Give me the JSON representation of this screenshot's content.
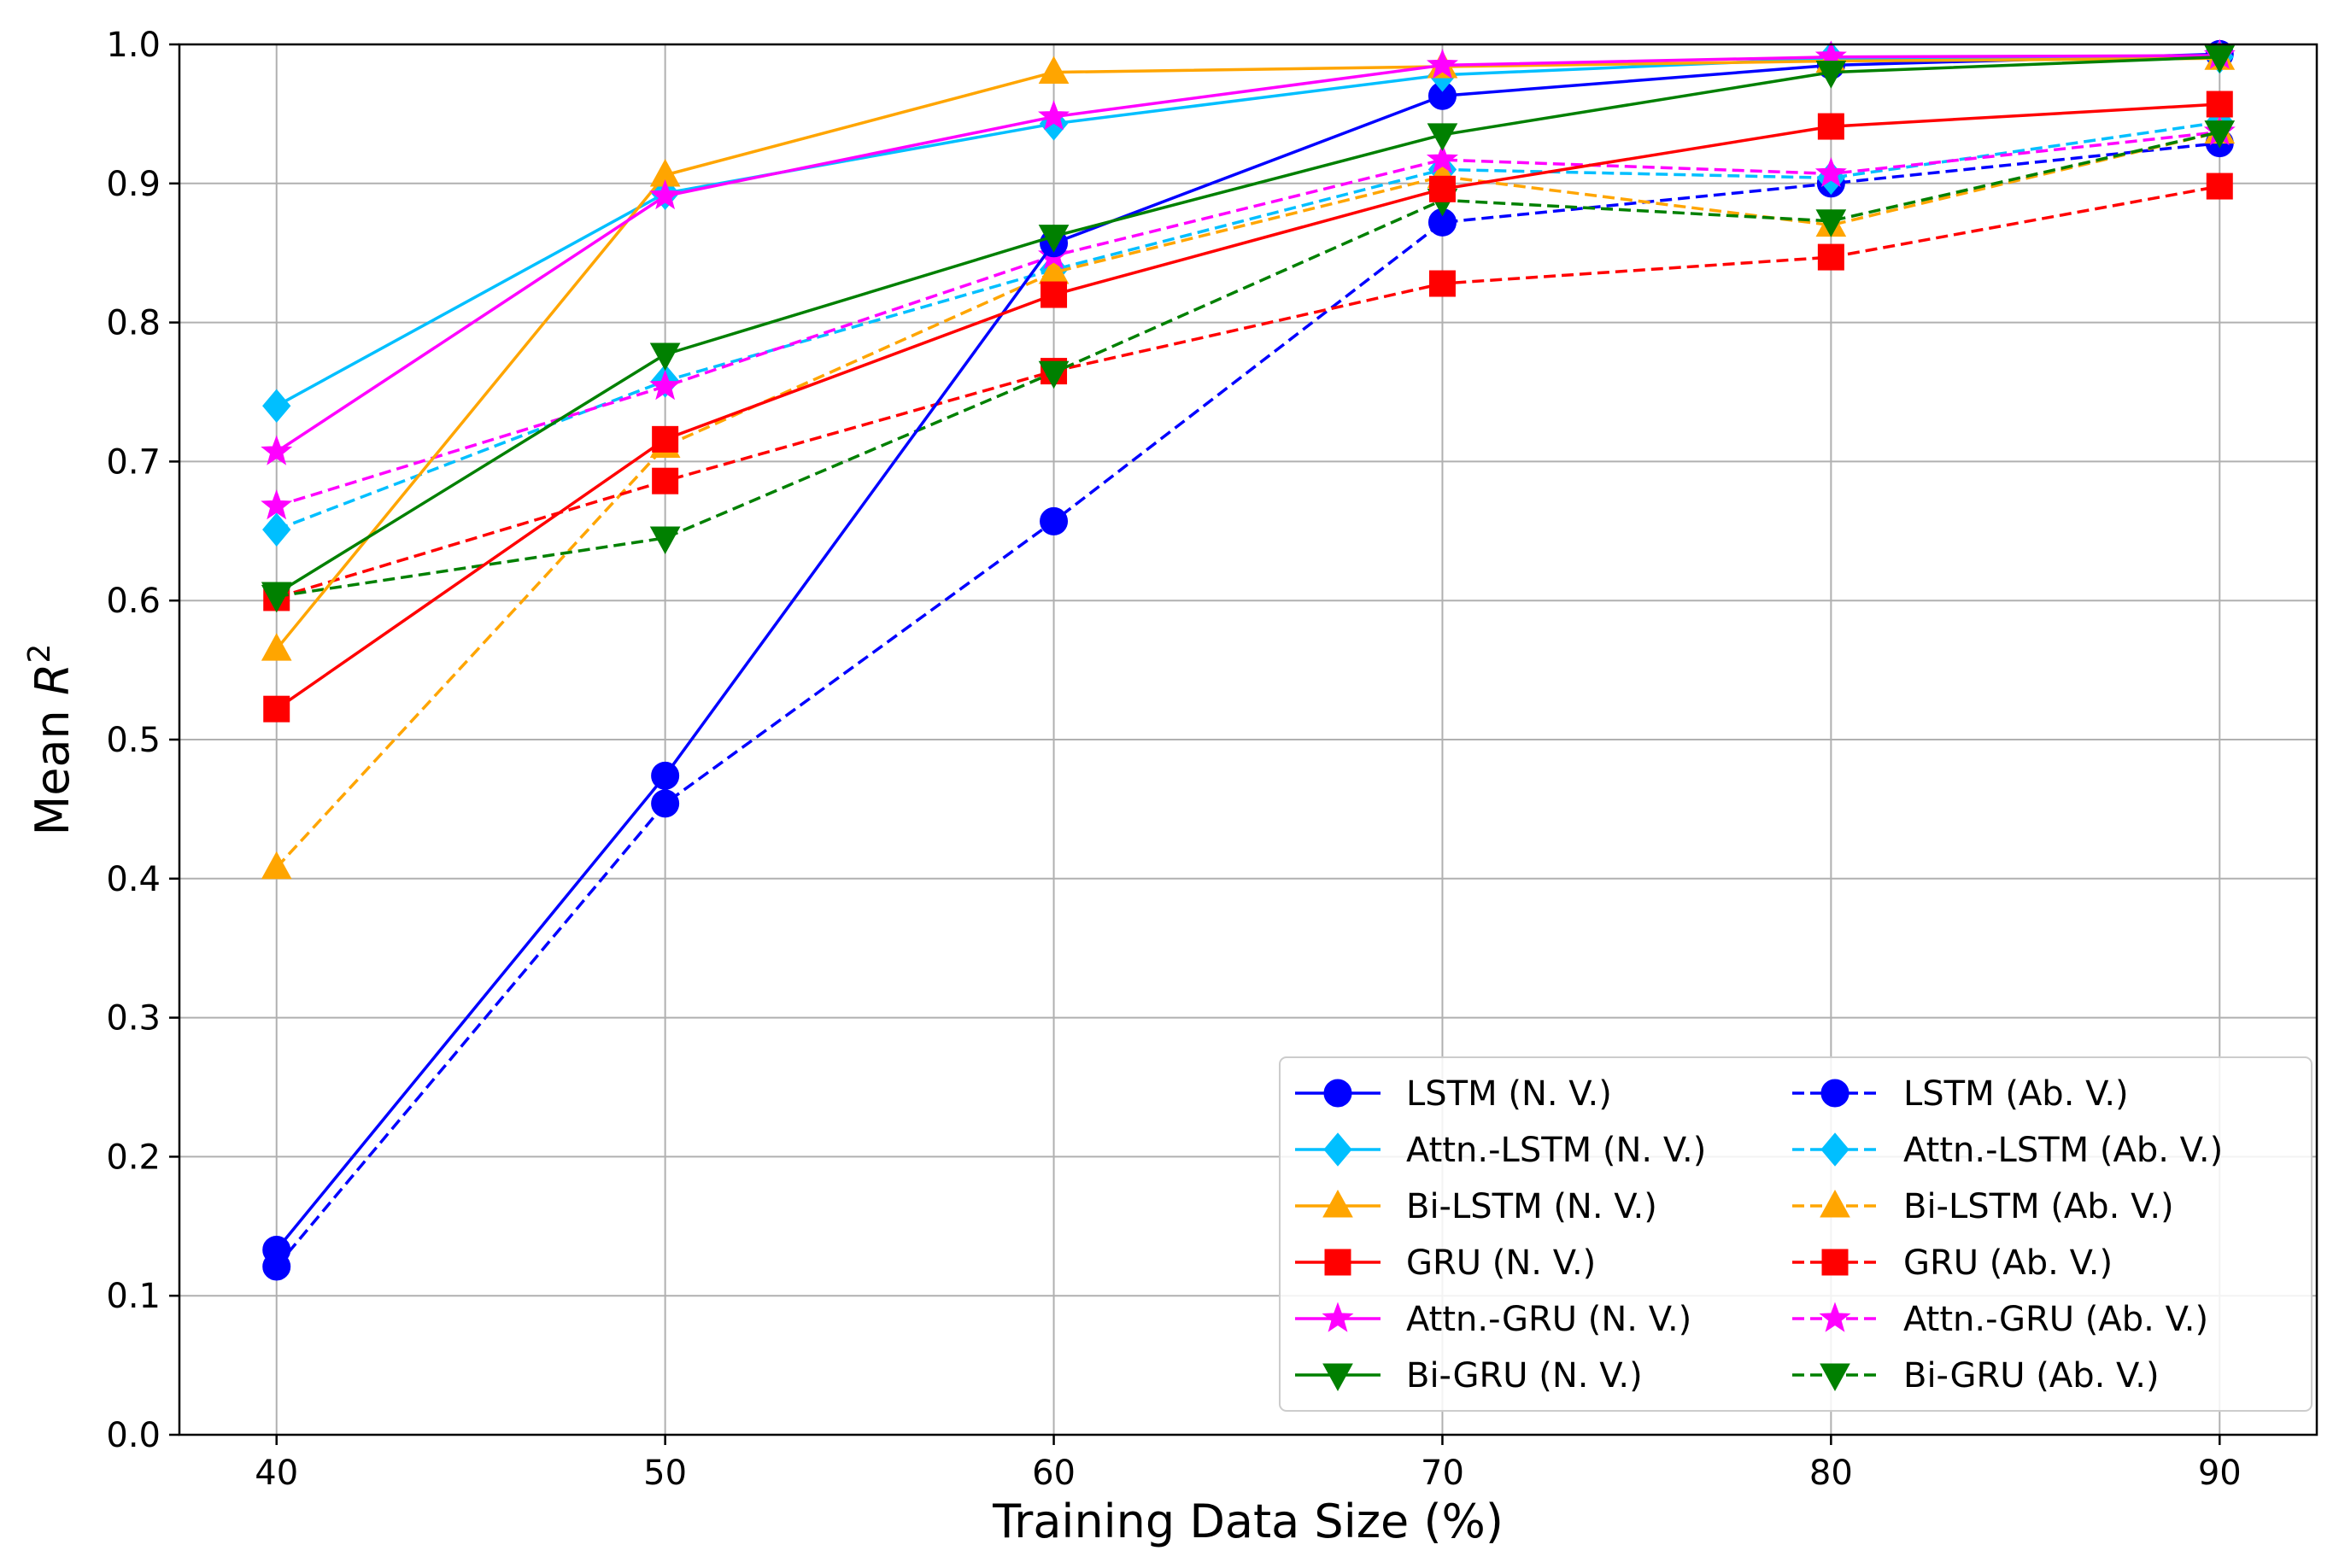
{
  "chart_data": {
    "type": "line",
    "xlabel": "Training Data Size (%)",
    "ylabel_prefix": "Mean ",
    "ylabel_var": "R",
    "ylabel_sup": "2",
    "x": [
      40,
      50,
      60,
      70,
      80,
      90
    ],
    "x_ticks": [
      "40",
      "50",
      "60",
      "70",
      "80",
      "90"
    ],
    "xlim": [
      37.5,
      92.5
    ],
    "ylim": [
      0.0,
      1.0
    ],
    "y_ticks": [
      "0.0",
      "0.1",
      "0.2",
      "0.3",
      "0.4",
      "0.5",
      "0.6",
      "0.7",
      "0.8",
      "0.9",
      "1.0"
    ],
    "y_tick_values": [
      0.0,
      0.1,
      0.2,
      0.3,
      0.4,
      0.5,
      0.6,
      0.7,
      0.8,
      0.9,
      1.0
    ],
    "grid": true,
    "legend_position": "bottom-right",
    "series": [
      {
        "name": "LSTM (N. V.)",
        "color": "#0000ff",
        "dash": "solid",
        "marker": "circle",
        "values": [
          0.133,
          0.474,
          0.857,
          0.963,
          0.985,
          0.993
        ]
      },
      {
        "name": "Attn.-LSTM (N. V.)",
        "color": "#00bfff",
        "dash": "solid",
        "marker": "diamond",
        "values": [
          0.74,
          0.893,
          0.943,
          0.978,
          0.99,
          0.991
        ]
      },
      {
        "name": "Bi-LSTM (N. V.)",
        "color": "#ffa500",
        "dash": "solid",
        "marker": "triangle-up",
        "values": [
          0.565,
          0.906,
          0.98,
          0.984,
          0.988,
          0.99
        ]
      },
      {
        "name": "GRU (N. V.)",
        "color": "#ff0000",
        "dash": "solid",
        "marker": "square",
        "values": [
          0.522,
          0.716,
          0.82,
          0.896,
          0.941,
          0.957
        ]
      },
      {
        "name": "Attn.-GRU (N. V.)",
        "color": "#ff00ff",
        "dash": "solid",
        "marker": "star",
        "values": [
          0.707,
          0.891,
          0.948,
          0.985,
          0.991,
          0.992
        ]
      },
      {
        "name": "Bi-GRU (N. V.)",
        "color": "#008000",
        "dash": "solid",
        "marker": "triangle-down",
        "values": [
          0.605,
          0.777,
          0.862,
          0.935,
          0.98,
          0.991
        ]
      },
      {
        "name": "LSTM (Ab. V.)",
        "color": "#0000ff",
        "dash": "dashed",
        "marker": "circle",
        "values": [
          0.121,
          0.454,
          0.657,
          0.872,
          0.9,
          0.929
        ]
      },
      {
        "name": "Attn.-LSTM (Ab. V.)",
        "color": "#00bfff",
        "dash": "dashed",
        "marker": "diamond",
        "values": [
          0.651,
          0.758,
          0.838,
          0.91,
          0.904,
          0.944
        ]
      },
      {
        "name": "Bi-LSTM (Ab. V.)",
        "color": "#ffa500",
        "dash": "dashed",
        "marker": "triangle-up",
        "values": [
          0.408,
          0.711,
          0.836,
          0.905,
          0.87,
          0.937
        ]
      },
      {
        "name": "GRU (Ab. V.)",
        "color": "#ff0000",
        "dash": "dashed",
        "marker": "square",
        "values": [
          0.602,
          0.686,
          0.765,
          0.828,
          0.847,
          0.898
        ]
      },
      {
        "name": "Attn.-GRU (Ab. V.)",
        "color": "#ff00ff",
        "dash": "dashed",
        "marker": "star",
        "values": [
          0.668,
          0.754,
          0.848,
          0.917,
          0.907,
          0.937
        ]
      },
      {
        "name": "Bi-GRU (Ab. V.)",
        "color": "#008000",
        "dash": "dashed",
        "marker": "triangle-down",
        "values": [
          0.603,
          0.645,
          0.764,
          0.888,
          0.873,
          0.937
        ]
      }
    ]
  }
}
